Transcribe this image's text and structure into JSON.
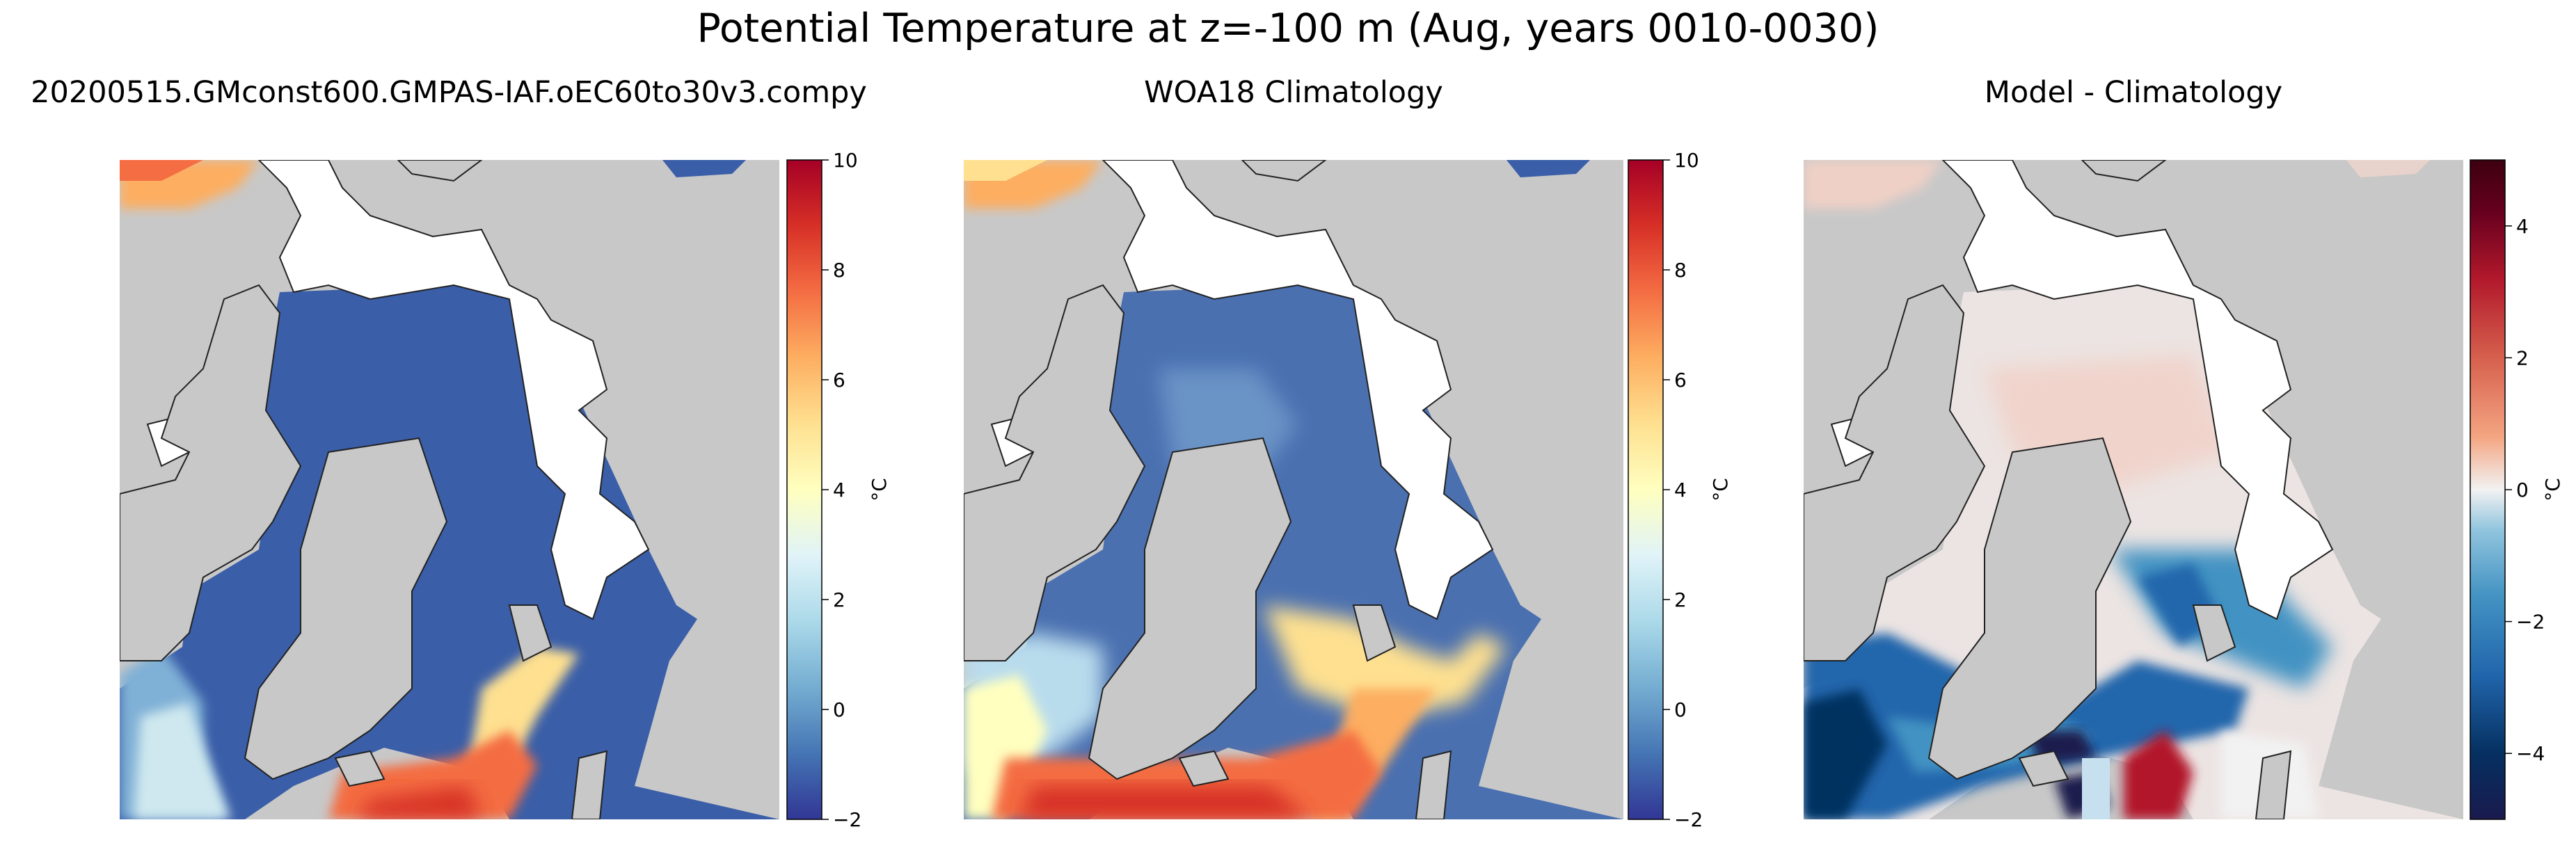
{
  "figure": {
    "title": "Potential Temperature at z=-100 m (Aug, years 0010-0030)"
  },
  "panels": [
    {
      "id": "model",
      "title": "20200515.GMconst600.GMPAS-IAF.oEC60to30v3.compy",
      "colormap": "RdYlBu_r",
      "colorbar": {
        "min": -2,
        "max": 10,
        "ticks": [
          "10",
          "8",
          "6",
          "4",
          "2",
          "0",
          "−2"
        ],
        "tick_values": [
          10,
          8,
          6,
          4,
          2,
          0,
          -2
        ],
        "label": "°C"
      }
    },
    {
      "id": "climatology",
      "title": "WOA18 Climatology",
      "colormap": "RdYlBu_r",
      "colorbar": {
        "min": -2,
        "max": 10,
        "ticks": [
          "10",
          "8",
          "6",
          "4",
          "2",
          "0",
          "−2"
        ],
        "tick_values": [
          10,
          8,
          6,
          4,
          2,
          0,
          -2
        ],
        "label": "°C"
      }
    },
    {
      "id": "difference",
      "title": "Model - Climatology",
      "colormap": "RdBu_r",
      "colorbar": {
        "min": -5,
        "max": 5,
        "ticks": [
          "4",
          "2",
          "0",
          "−2",
          "−4"
        ],
        "tick_values": [
          4,
          2,
          0,
          -2,
          -4
        ],
        "label": "°C"
      }
    }
  ],
  "colors": {
    "land": "#c8c8c8",
    "missing": "#ffffff",
    "coastline": "#222222",
    "rdylbu_r": [
      "#313695",
      "#4575b4",
      "#74add1",
      "#abd9e9",
      "#e0f3f8",
      "#ffffbf",
      "#fee090",
      "#fdae61",
      "#f46d43",
      "#d73027",
      "#a50026"
    ],
    "rdbu_r": [
      "#1a1a4e",
      "#053061",
      "#2166ac",
      "#4393c3",
      "#92c5de",
      "#f2f2f2",
      "#f4a582",
      "#d6604d",
      "#b2182b",
      "#67001f",
      "#3d0010"
    ]
  }
}
